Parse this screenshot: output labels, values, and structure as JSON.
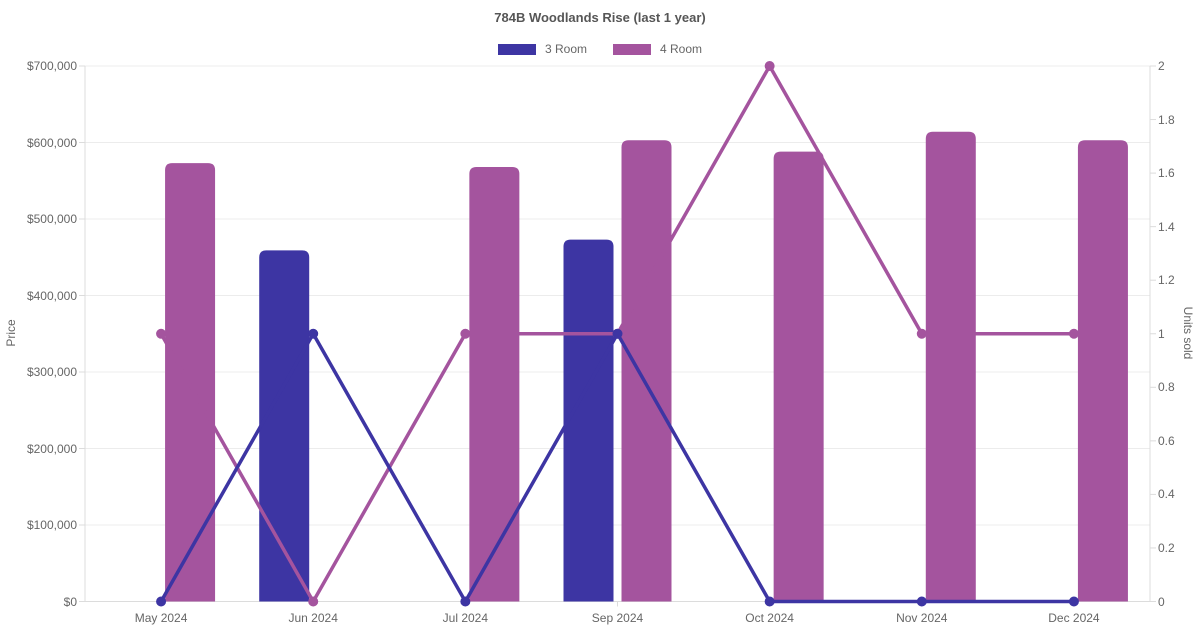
{
  "chart_data": {
    "type": "combo-bar-line",
    "title": "784B Woodlands Rise (last 1 year)",
    "categories": [
      "May 2024",
      "Jun 2024",
      "Jul 2024",
      "Sep 2024",
      "Oct 2024",
      "Nov 2024",
      "Dec 2024"
    ],
    "series": [
      {
        "name": "3 Room",
        "kind": "bar",
        "axis": "left",
        "color": "#3d35a3",
        "values": [
          null,
          459000,
          null,
          473000,
          null,
          null,
          null
        ]
      },
      {
        "name": "4 Room",
        "kind": "bar",
        "axis": "left",
        "color": "#a4549e",
        "values": [
          573000,
          null,
          568000,
          603000,
          588000,
          614000,
          603000
        ]
      },
      {
        "name": "3 Room",
        "kind": "line",
        "axis": "right",
        "color": "#3d35a3",
        "values": [
          0,
          1,
          0,
          1,
          0,
          0,
          0
        ]
      },
      {
        "name": "4 Room",
        "kind": "line",
        "axis": "right",
        "color": "#a4549e",
        "values": [
          1,
          0,
          1,
          1,
          2,
          1,
          1
        ]
      }
    ],
    "left_axis": {
      "label": "Price",
      "min": 0,
      "max": 700000,
      "ticks": [
        {
          "value": 0,
          "label": "$0"
        },
        {
          "value": 100000,
          "label": "$100,000"
        },
        {
          "value": 200000,
          "label": "$200,000"
        },
        {
          "value": 300000,
          "label": "$300,000"
        },
        {
          "value": 400000,
          "label": "$400,000"
        },
        {
          "value": 500000,
          "label": "$500,000"
        },
        {
          "value": 600000,
          "label": "$600,000"
        },
        {
          "value": 700000,
          "label": "$700,000"
        }
      ]
    },
    "right_axis": {
      "label": "Units sold",
      "min": 0,
      "max": 2,
      "ticks": [
        {
          "value": 0,
          "label": "0"
        },
        {
          "value": 0.2,
          "label": "0.2"
        },
        {
          "value": 0.4,
          "label": "0.4"
        },
        {
          "value": 0.6,
          "label": "0.6"
        },
        {
          "value": 0.8,
          "label": "0.8"
        },
        {
          "value": 1,
          "label": "1"
        },
        {
          "value": 1.2,
          "label": "1.2"
        },
        {
          "value": 1.4,
          "label": "1.4"
        },
        {
          "value": 1.6,
          "label": "1.6"
        },
        {
          "value": 1.8,
          "label": "1.8"
        },
        {
          "value": 2,
          "label": "2"
        }
      ]
    },
    "grid": true,
    "legend_position": "top"
  }
}
